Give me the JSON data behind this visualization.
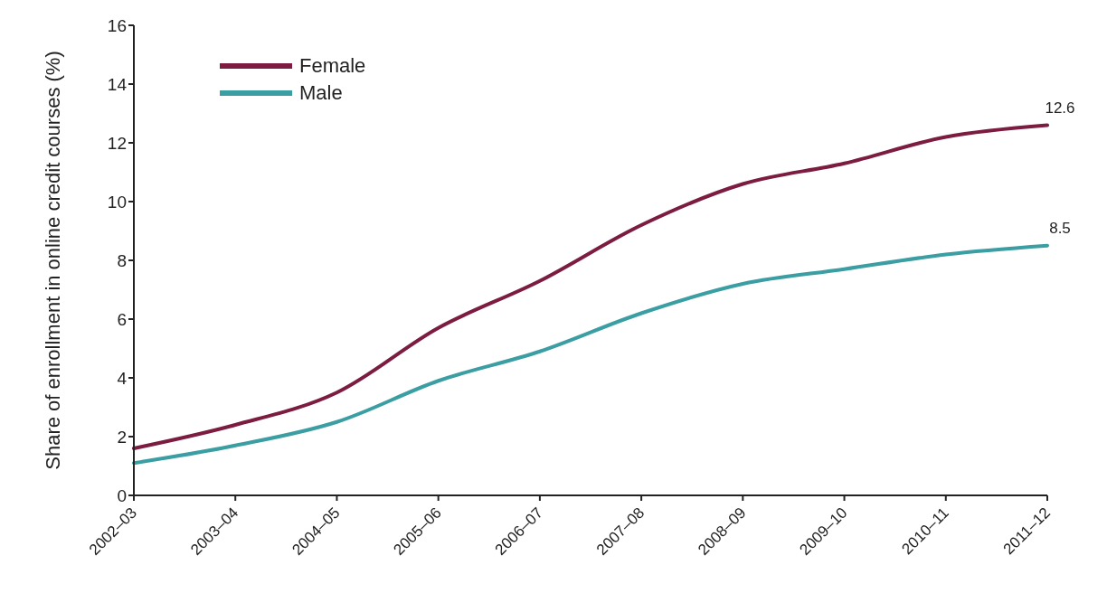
{
  "chart_data": {
    "type": "line",
    "ylabel": "Share of enrollment in online credit courses (%)",
    "categories": [
      "2002–03",
      "2003–04",
      "2004–05",
      "2005–06",
      "2006–07",
      "2007–08",
      "2008–09",
      "2009–10",
      "2010–11",
      "2011–12"
    ],
    "series": [
      {
        "name": "Female",
        "color": "#7b1c40",
        "values": [
          1.6,
          2.4,
          3.5,
          5.7,
          7.3,
          9.2,
          10.6,
          11.3,
          12.2,
          12.6
        ],
        "value_labels": [
          null,
          null,
          null,
          null,
          null,
          null,
          null,
          null,
          null,
          "12.6"
        ]
      },
      {
        "name": "Male",
        "color": "#3b9ea3",
        "values": [
          1.1,
          1.7,
          2.5,
          3.9,
          4.9,
          6.2,
          7.2,
          7.7,
          8.2,
          8.5
        ],
        "value_labels": [
          null,
          null,
          null,
          null,
          null,
          null,
          null,
          null,
          null,
          "8.5"
        ]
      }
    ],
    "ylim": [
      0,
      16
    ],
    "yticks": [
      0,
      2,
      4,
      6,
      8,
      10,
      12,
      14,
      16
    ],
    "grid": false,
    "legend": "top left",
    "marker": "none",
    "line_style": "solid"
  }
}
